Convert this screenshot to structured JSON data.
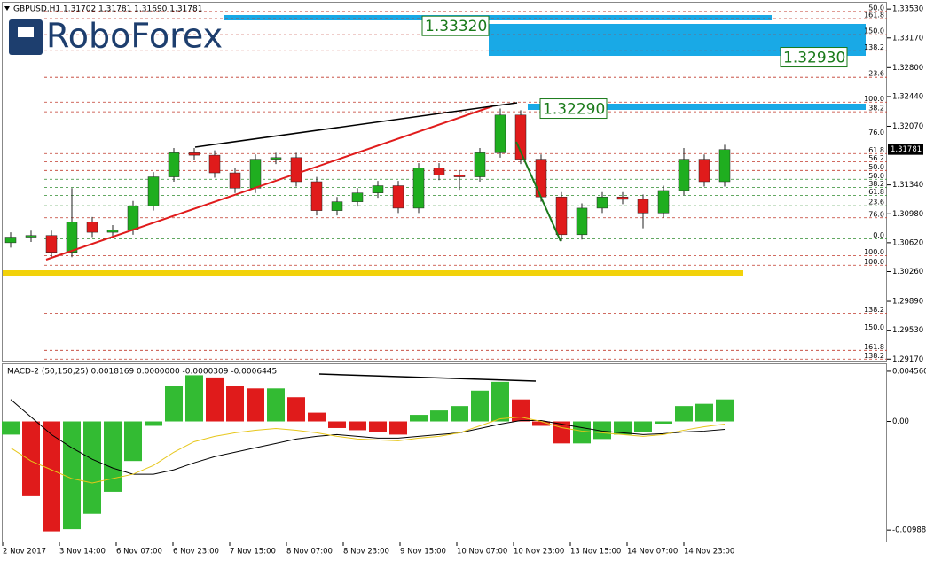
{
  "header": {
    "symbol_line": "GBPUSD,H1  1.31702 1.31781 1.31690 1.31781"
  },
  "logo": "RoboForex",
  "chart_data": [
    {
      "type": "candlestick",
      "up_color": "#1fae1f",
      "down_color": "#e01b1b",
      "open": [
        1.3062,
        1.3069,
        1.3071,
        1.305,
        1.3088,
        1.3075,
        1.3078,
        1.3108,
        1.3144,
        1.3174,
        1.3171,
        1.3149,
        1.313,
        1.3166,
        1.3168,
        1.3138,
        1.3102,
        1.3113,
        1.3124,
        1.3133,
        1.3105,
        1.3155,
        1.3146,
        1.3144,
        1.3174,
        1.3221,
        1.3166,
        1.3119,
        1.3072,
        1.3105,
        1.3119,
        1.3116,
        1.3099,
        1.3127,
        1.3166,
        1.3138
      ],
      "high": [
        1.3075,
        1.3077,
        1.3077,
        1.313,
        1.3094,
        1.3084,
        1.3114,
        1.315,
        1.318,
        1.318,
        1.3177,
        1.3155,
        1.3172,
        1.3174,
        1.3174,
        1.3144,
        1.3119,
        1.313,
        1.3139,
        1.3139,
        1.3161,
        1.3161,
        1.3152,
        1.318,
        1.3229,
        1.3227,
        1.3172,
        1.3125,
        1.3111,
        1.3125,
        1.3125,
        1.3122,
        1.3133,
        1.318,
        1.3172,
        1.3184
      ],
      "low": [
        1.3056,
        1.3063,
        1.3044,
        1.3044,
        1.3069,
        1.3069,
        1.3072,
        1.3102,
        1.3138,
        1.3165,
        1.3143,
        1.3124,
        1.3124,
        1.316,
        1.3132,
        1.3096,
        1.3096,
        1.3107,
        1.3118,
        1.3099,
        1.3099,
        1.314,
        1.3128,
        1.3138,
        1.3168,
        1.316,
        1.3113,
        1.3064,
        1.3066,
        1.3099,
        1.311,
        1.308,
        1.3093,
        1.3121,
        1.3132,
        1.3132
      ],
      "close": [
        1.3069,
        1.3071,
        1.305,
        1.3088,
        1.3075,
        1.3078,
        1.3108,
        1.3144,
        1.3174,
        1.3171,
        1.3149,
        1.313,
        1.3166,
        1.3168,
        1.3138,
        1.3102,
        1.3113,
        1.3124,
        1.3133,
        1.3105,
        1.3155,
        1.3146,
        1.3144,
        1.3174,
        1.3221,
        1.3166,
        1.3119,
        1.3072,
        1.3105,
        1.3119,
        1.3116,
        1.3099,
        1.3127,
        1.3166,
        1.3138,
        1.3178
      ],
      "ylim": [
        1.2914,
        1.3362
      ],
      "yticks": [
        {
          "value": 1.3353,
          "label": "1.33530"
        },
        {
          "value": 1.3317,
          "label": "1.33170"
        },
        {
          "value": 1.328,
          "label": "1.32800"
        },
        {
          "value": 1.3244,
          "label": "1.32440"
        },
        {
          "value": 1.3207,
          "label": "1.32070"
        },
        {
          "value": 1.3134,
          "label": "1.31340"
        },
        {
          "value": 1.3098,
          "label": "1.30980"
        },
        {
          "value": 1.3062,
          "label": "1.30620"
        },
        {
          "value": 1.3026,
          "label": "1.30260"
        },
        {
          "value": 1.2989,
          "label": "1.29890"
        },
        {
          "value": 1.2953,
          "label": "1.29530"
        },
        {
          "value": 1.2917,
          "label": "1.29170"
        }
      ],
      "last_price": 1.31781,
      "callouts": [
        {
          "value": 1.3332,
          "label": "1.33320"
        },
        {
          "value": 1.3293,
          "label": "1.32930"
        },
        {
          "value": 1.3229,
          "label": "1.32290"
        }
      ],
      "levels": [
        {
          "label": "50.0",
          "price": 1.335,
          "color": "#c0392b"
        },
        {
          "label": "161.8",
          "price": 1.3341,
          "color": "#c0392b"
        },
        {
          "label": "150.0",
          "price": 1.3321,
          "color": "#c0392b"
        },
        {
          "label": "138.2",
          "price": 1.3301,
          "color": "#c0392b"
        },
        {
          "label": "23.6",
          "price": 1.3268,
          "color": "#c0392b"
        },
        {
          "label": "100.0",
          "price": 1.3237,
          "color": "#c0392b"
        },
        {
          "label": "38.2",
          "price": 1.3225,
          "color": "#c0392b"
        },
        {
          "label": "76.0",
          "price": 1.3195,
          "color": "#c0392b"
        },
        {
          "label": "61.8",
          "price": 1.3173,
          "color": "#c0392b"
        },
        {
          "label": "56.2",
          "price": 1.3163,
          "color": "#c0392b"
        },
        {
          "label": "50.0",
          "price": 1.3152,
          "color": "#c0392b"
        },
        {
          "label": "50.0",
          "price": 1.3141,
          "color": "#2e8b2e"
        },
        {
          "label": "38.2",
          "price": 1.3131,
          "color": "#2e8b2e"
        },
        {
          "label": "61.8",
          "price": 1.3121,
          "color": "#2e8b2e"
        },
        {
          "label": "23.6",
          "price": 1.3108,
          "color": "#2e8b2e"
        },
        {
          "label": "76.0",
          "price": 1.3093,
          "color": "#c0392b"
        },
        {
          "label": "0.0",
          "price": 1.3067,
          "color": "#2e8b2e"
        },
        {
          "label": "100.0",
          "price": 1.3046,
          "color": "#c0392b"
        },
        {
          "label": "100.0",
          "price": 1.3034,
          "color": "#c0392b"
        },
        {
          "label": "138.2",
          "price": 1.2974,
          "color": "#c0392b"
        },
        {
          "label": "150.0",
          "price": 1.2952,
          "color": "#c0392b"
        },
        {
          "label": "161.8",
          "price": 1.2928,
          "color": "#c0392b"
        },
        {
          "label": "138.2",
          "price": 1.2917,
          "color": "#c0392b"
        }
      ],
      "x_labels": [
        "2 Nov 2017",
        "3 Nov 14:00",
        "6 Nov 07:00",
        "6 Nov 23:00",
        "7 Nov 15:00",
        "8 Nov 07:00",
        "8 Nov 23:00",
        "9 Nov 15:00",
        "10 Nov 07:00",
        "10 Nov 23:00",
        "13 Nov 15:00",
        "14 Nov 07:00",
        "14 Nov 23:00"
      ]
    },
    {
      "type": "macd",
      "title": "MACD-2 (50,150,25) 0.0018169 0.0000000 -0.0000309 -0.0006445",
      "up_color": "#33bb33",
      "down_color": "#e01b1b",
      "histogram": [
        -0.0012,
        -0.0068,
        -0.01,
        -0.0098,
        -0.0084,
        -0.0064,
        -0.0036,
        -0.0004,
        0.0032,
        0.0042,
        0.004,
        0.0032,
        0.003,
        0.003,
        0.0022,
        0.0008,
        -0.0006,
        -0.0008,
        -0.001,
        -0.0012,
        0.0006,
        0.001,
        0.0014,
        0.0028,
        0.0036,
        0.002,
        -0.0004,
        -0.002,
        -0.002,
        -0.0016,
        -0.0012,
        -0.001,
        -0.0002,
        0.0014,
        0.0016,
        0.002
      ],
      "series": [
        {
          "color": "#000000",
          "values": [
            0.002,
            0.0004,
            -0.0012,
            -0.0024,
            -0.00344,
            -0.00424,
            -0.0048,
            -0.0048,
            -0.0044,
            -0.00376,
            -0.0032,
            -0.0028,
            -0.0024,
            -0.002,
            -0.0016,
            -0.00136,
            -0.0012,
            -0.00136,
            -0.00152,
            -0.00152,
            -0.00136,
            -0.0012,
            -0.00104,
            -0.00064,
            -0.00024,
            8e-05,
            8e-05,
            -0.00024,
            -0.00056,
            -0.00088,
            -0.00104,
            -0.0012,
            -0.00112,
            -0.00096,
            -0.00088,
            -0.00072
          ]
        },
        {
          "color": "#e6c619",
          "values": [
            -0.0024,
            -0.0036,
            -0.0044,
            -0.0052,
            -0.0056,
            -0.0052,
            -0.0048,
            -0.004,
            -0.0028,
            -0.00184,
            -0.00136,
            -0.00104,
            -0.0008,
            -0.00064,
            -0.0008,
            -0.00104,
            -0.00136,
            -0.0016,
            -0.00168,
            -0.00176,
            -0.00152,
            -0.00136,
            -0.00104,
            -0.0004,
            0.00024,
            0.0004,
            0,
            -0.00056,
            -0.00088,
            -0.00104,
            -0.0012,
            -0.00136,
            -0.0012,
            -0.0008,
            -0.00048,
            -0.00024
          ]
        }
      ],
      "ylim": [
        -0.011,
        0.0052
      ],
      "yticks": [
        {
          "value": 0.00456,
          "label": "0.004560"
        },
        {
          "value": 0,
          "label": "0.00"
        },
        {
          "value": -0.009884,
          "label": "-0.009884"
        }
      ]
    }
  ]
}
